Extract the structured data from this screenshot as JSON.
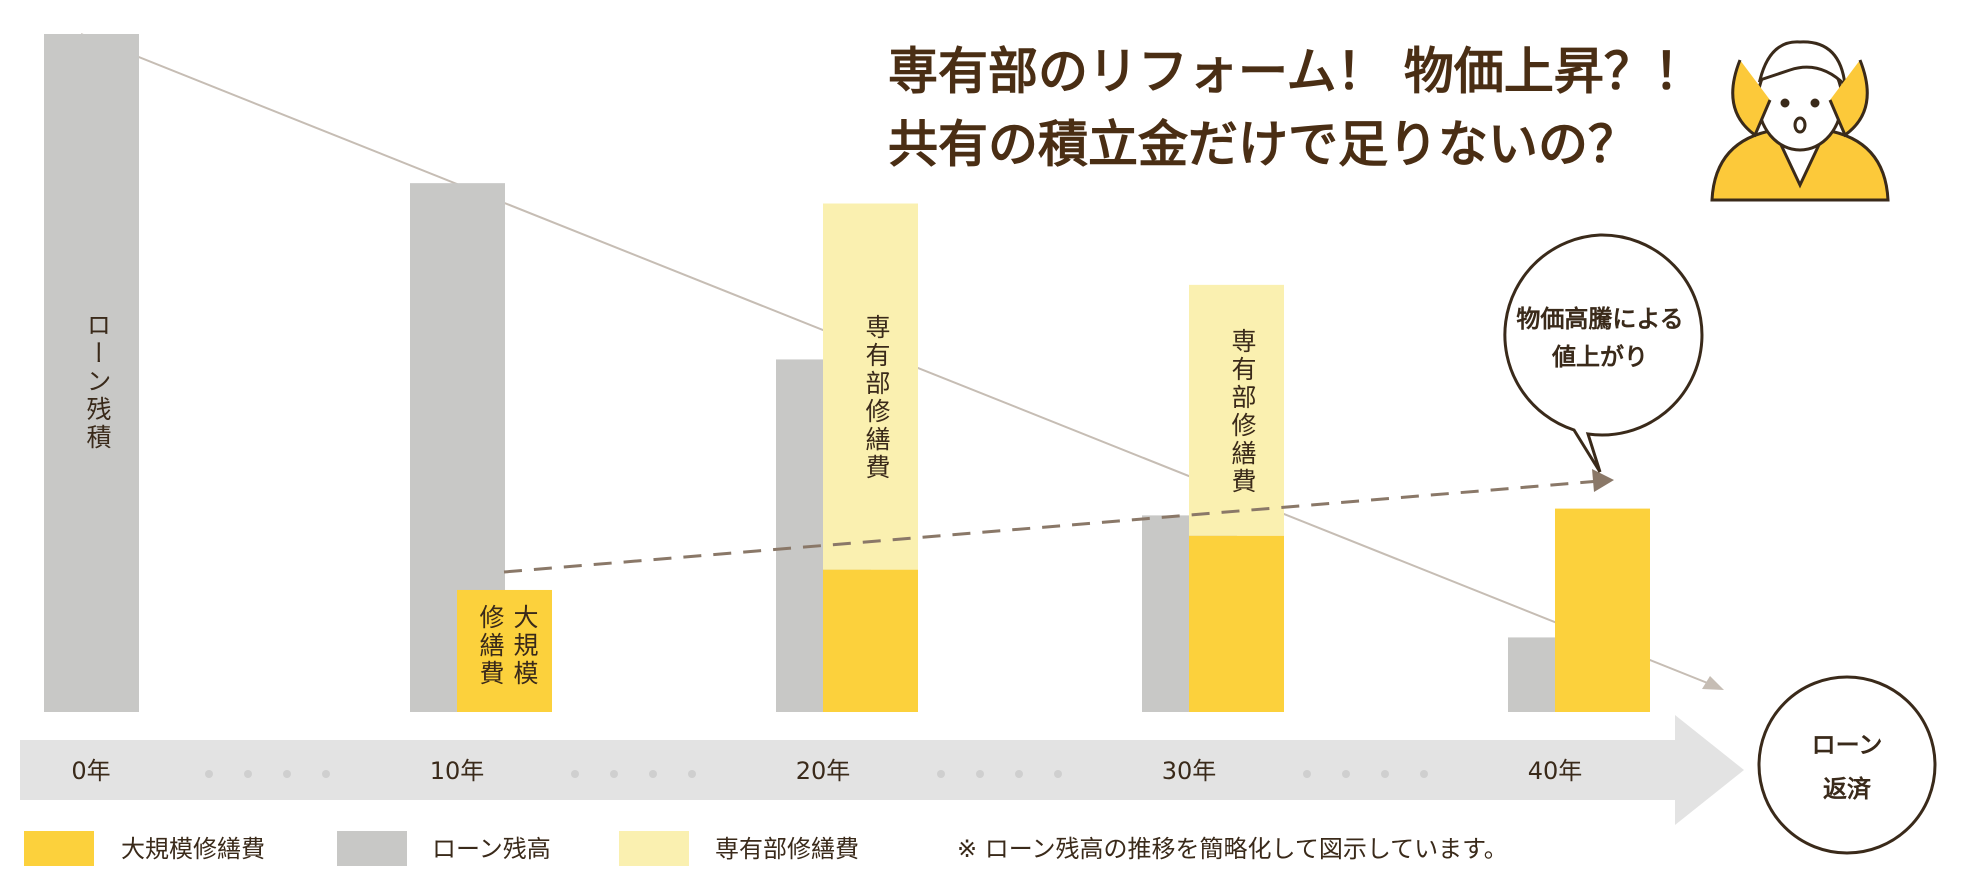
{
  "chart_data": {
    "type": "bar",
    "title": [
      "専有部のリフォーム！ 物価上昇？！",
      "共有の積立金だけで足りないの？"
    ],
    "categories": [
      "0年",
      "10年",
      "20年",
      "30年",
      "40年"
    ],
    "series": [
      {
        "name": "大規模修繕費",
        "color": "#fcd13c",
        "values": [
          null,
          18,
          21,
          26,
          30
        ]
      },
      {
        "name": "ローン残高",
        "color": "#c8c8c6",
        "values": [
          100,
          78,
          52,
          29,
          11
        ]
      },
      {
        "name": "専有部修繕費",
        "color": "#faf0b0",
        "values": [
          null,
          null,
          54,
          37,
          null
        ]
      }
    ],
    "ylim": [
      0,
      100
    ],
    "bar_labels": [
      "ローン残積",
      "大規模修繕費",
      "専有部修繕費",
      "専有部修繕費"
    ],
    "callout": [
      "物価高騰による",
      "値上がり"
    ],
    "end_label": [
      "ローン",
      "返済"
    ],
    "note": "※ ローン残高の推移を簡略化して図示しています。"
  }
}
